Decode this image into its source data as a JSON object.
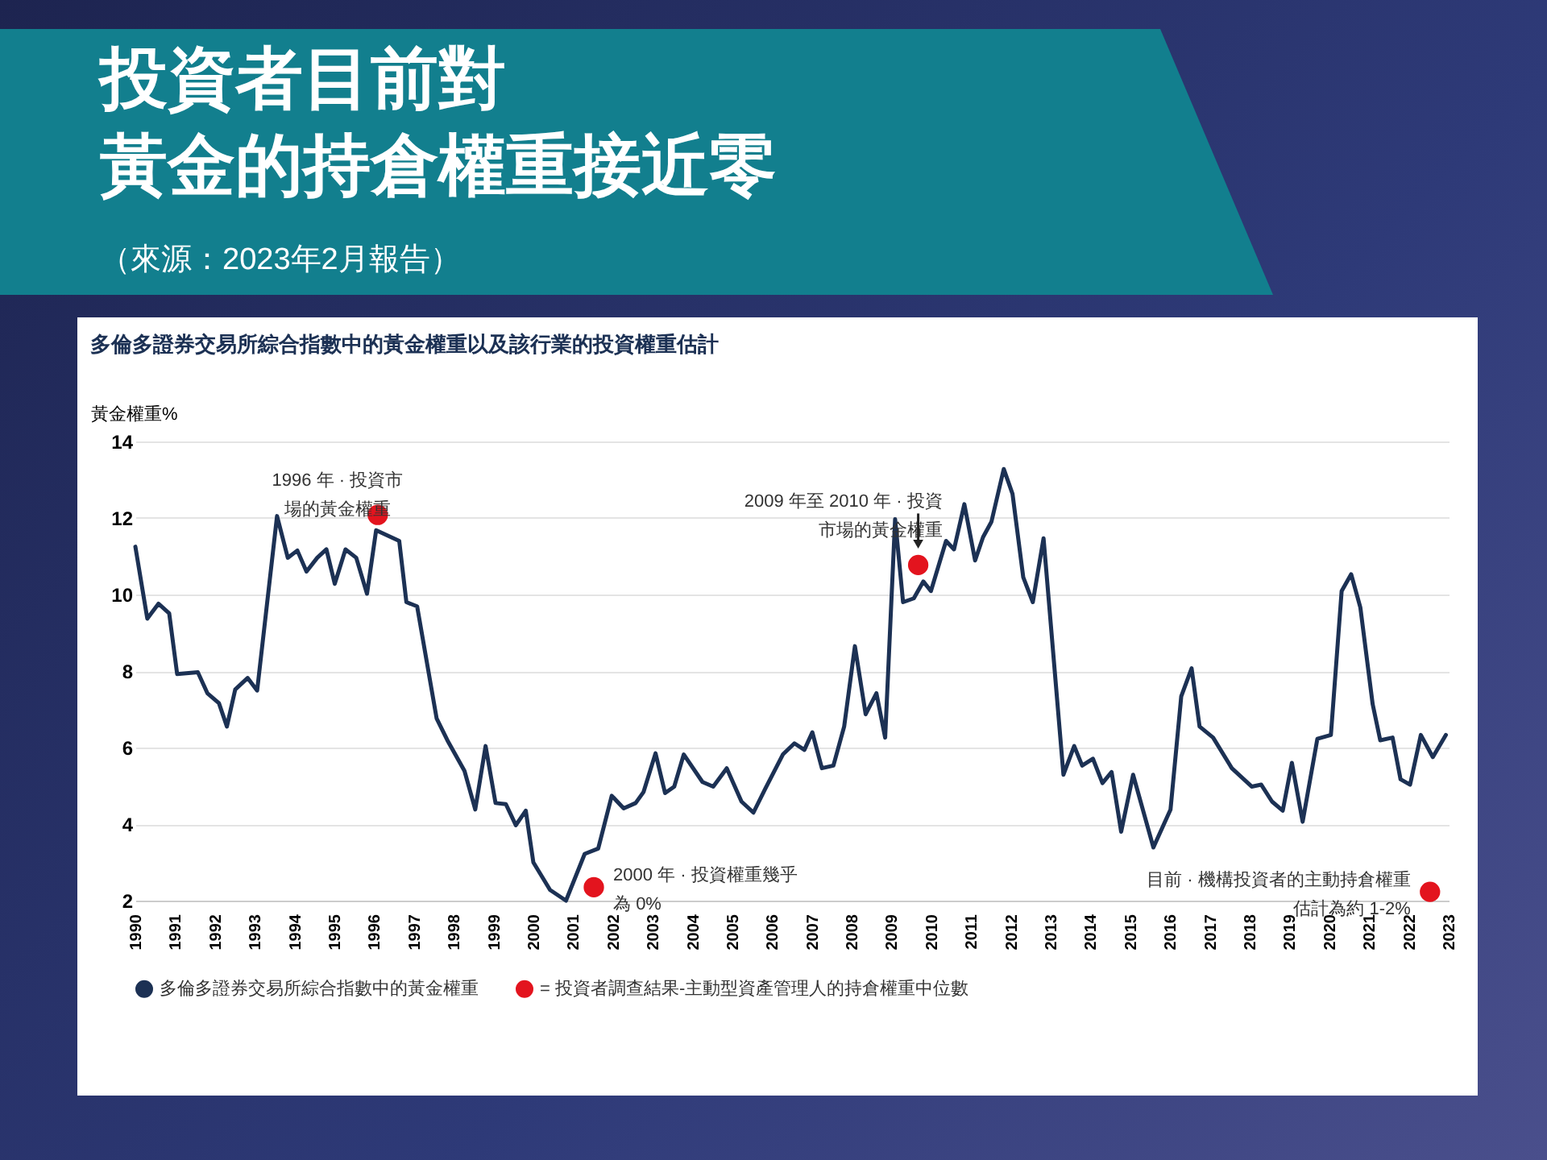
{
  "chart_data": {
    "type": "line",
    "title": "投資者目前對黃金的持倉權重接近零",
    "subtitle": "（來源：2023年2月報告）",
    "ylabel": "黃金權重%",
    "annotations": [
      "多倫多證券交易所綜合指數中的黃金權重以及該行業的投資權重估計",
      {
        "text": "1996 年 · 投資市場的黃金權重",
        "x": 1996.09,
        "y": 12.08
      },
      {
        "text": "2000 年 · 投資權重幾乎為 0%",
        "x": 2001.52,
        "y": 2.35
      },
      {
        "text": "2009 年至 2010 年 · 投資市場的黃金權重",
        "x": 2009.67,
        "y": 10.77
      },
      {
        "text": "目前 · 機構投資者的主動持倉權重估計為約 1-2%",
        "x": 2022.53,
        "y": 2.23
      }
    ],
    "xlim": [
      1990,
      2023
    ],
    "xticks": [
      1990,
      1991,
      1992,
      1993,
      1994,
      1995,
      1996,
      1997,
      1998,
      1999,
      2000,
      2001,
      2002,
      2003,
      2004,
      2005,
      2006,
      2007,
      2008,
      2009,
      2010,
      2011,
      2012,
      2013,
      2014,
      2015,
      2016,
      2017,
      2018,
      2019,
      2020,
      2021,
      2022,
      2023
    ],
    "ylim": [
      2,
      14
    ],
    "yticks": [
      2,
      4,
      6,
      8,
      10,
      12,
      14
    ],
    "grid": "y",
    "legend": "bottom",
    "series": [
      {
        "name": "多倫多證券交易所綜合指數中的黃金權重",
        "color": "#1c3154",
        "x": [
          1990.0,
          1990.3,
          1990.58,
          1990.85,
          1991.05,
          1991.57,
          1991.81,
          1992.1,
          1992.3,
          1992.51,
          1992.82,
          1993.06,
          1993.56,
          1993.83,
          1994.07,
          1994.3,
          1994.57,
          1994.8,
          1995.01,
          1995.28,
          1995.55,
          1995.82,
          1996.05,
          1996.63,
          1996.81,
          1997.08,
          1997.57,
          1997.84,
          1998.27,
          1998.54,
          1998.8,
          1999.05,
          1999.31,
          1999.56,
          1999.81,
          2000.0,
          2000.42,
          2000.82,
          2001.29,
          2001.63,
          2001.97,
          2002.27,
          2002.57,
          2002.77,
          2003.07,
          2003.31,
          2003.54,
          2003.78,
          2004.25,
          2004.52,
          2004.86,
          2005.23,
          2005.53,
          2005.83,
          2006.27,
          2006.56,
          2006.81,
          2007.01,
          2007.25,
          2007.54,
          2007.81,
          2008.08,
          2008.35,
          2008.62,
          2008.84,
          2009.09,
          2009.29,
          2009.56,
          2009.8,
          2009.99,
          2010.37,
          2010.57,
          2010.83,
          2011.1,
          2011.3,
          2011.51,
          2011.82,
          2012.04,
          2012.31,
          2012.55,
          2012.82,
          2013.32,
          2013.59,
          2013.79,
          2014.06,
          2014.3,
          2014.53,
          2014.77,
          2015.07,
          2015.58,
          2016.01,
          2016.28,
          2016.54,
          2016.74,
          2017.08,
          2017.55,
          2018.05,
          2018.29,
          2018.56,
          2018.83,
          2019.06,
          2019.33,
          2019.7,
          2020.04,
          2020.31,
          2020.55,
          2020.78,
          2021.09,
          2021.28,
          2021.59,
          2021.79,
          2022.03,
          2022.3,
          2022.6,
          2022.93
        ],
        "values": [
          11.25,
          9.37,
          9.76,
          9.51,
          7.92,
          7.97,
          7.42,
          7.16,
          6.55,
          7.52,
          7.82,
          7.49,
          12.05,
          10.96,
          11.15,
          10.6,
          10.96,
          11.18,
          10.28,
          11.18,
          10.96,
          10.02,
          11.68,
          11.4,
          9.8,
          9.69,
          6.76,
          6.19,
          5.39,
          4.38,
          6.04,
          4.55,
          4.52,
          3.97,
          4.35,
          3.0,
          2.28,
          2.0,
          3.22,
          3.36,
          4.74,
          4.41,
          4.55,
          4.84,
          5.85,
          4.81,
          4.98,
          5.82,
          5.1,
          4.98,
          5.46,
          4.59,
          4.3,
          4.93,
          5.82,
          6.11,
          5.94,
          6.4,
          5.46,
          5.53,
          6.55,
          8.65,
          6.87,
          7.42,
          6.26,
          11.97,
          9.8,
          9.9,
          10.34,
          10.09,
          11.4,
          11.18,
          12.36,
          10.89,
          11.5,
          11.9,
          13.28,
          12.63,
          10.45,
          9.8,
          11.47,
          5.29,
          6.04,
          5.53,
          5.71,
          5.07,
          5.36,
          3.8,
          5.29,
          3.39,
          4.38,
          7.34,
          8.07,
          6.55,
          6.26,
          5.46,
          4.98,
          5.03,
          4.59,
          4.35,
          5.6,
          4.06,
          6.23,
          6.33,
          10.09,
          10.53,
          9.66,
          7.13,
          6.19,
          6.26,
          5.17,
          5.03,
          6.33,
          5.75,
          6.33
        ]
      },
      {
        "name": "= 投資者調查結果-主動型資產管理人的持倉權重中位數",
        "type": "scatter",
        "color": "#e3141e",
        "marker": "circle",
        "x": [
          1996.09,
          2001.52,
          2009.67,
          2022.53
        ],
        "values": [
          12.08,
          2.35,
          10.77,
          2.23
        ]
      }
    ]
  }
}
